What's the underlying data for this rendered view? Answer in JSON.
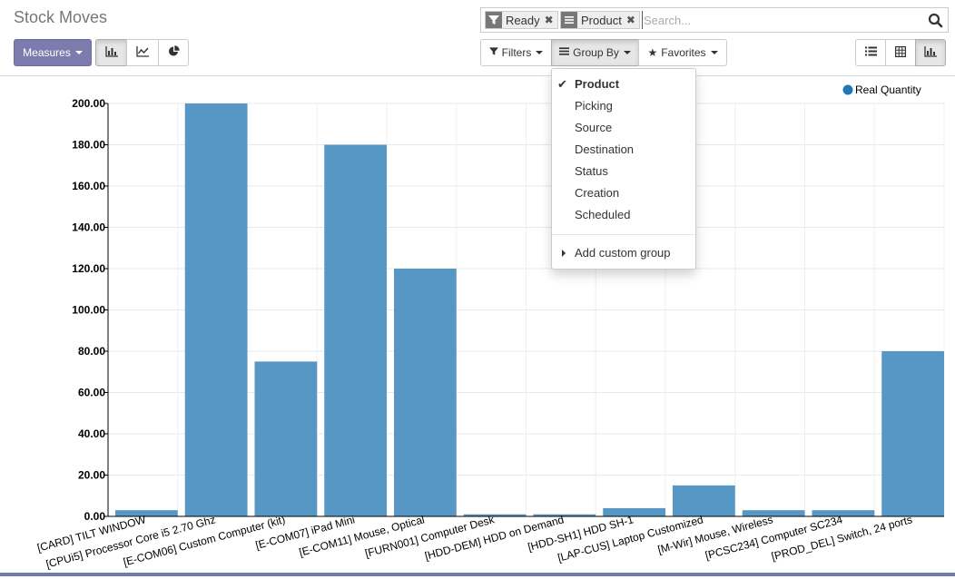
{
  "header": {
    "title": "Stock Moves"
  },
  "search": {
    "facets": [
      {
        "icon": "filter-icon",
        "label": "Ready"
      },
      {
        "icon": "bars-icon",
        "label": "Product"
      }
    ],
    "placeholder": "Search..."
  },
  "toolbar": {
    "measures_label": "Measures",
    "filters_label": "Filters",
    "groupby_label": "Group By",
    "favorites_label": "Favorites"
  },
  "groupby_menu": {
    "items": [
      {
        "label": "Product",
        "selected": true
      },
      {
        "label": "Picking",
        "selected": false
      },
      {
        "label": "Source",
        "selected": false
      },
      {
        "label": "Destination",
        "selected": false
      },
      {
        "label": "Status",
        "selected": false
      },
      {
        "label": "Creation",
        "selected": false
      },
      {
        "label": "Scheduled",
        "selected": false
      }
    ],
    "custom_label": "Add custom group"
  },
  "colors": {
    "bar": "#5697c6",
    "primary": "#7c7bad"
  },
  "chart_data": {
    "type": "bar",
    "categories": [
      "[CARD] TILT WINDOW",
      "[CPUi5] Processor Core i5 2.70 Ghz",
      "[E-COM06] Custom Computer (kit)",
      "[E-COM07] iPad Mini",
      "[E-COM11] Mouse, Optical",
      "[FURN001] Computer Desk",
      "[HDD-DEM] HDD on Demand",
      "[HDD-SH1] HDD SH-1",
      "[LAP-CUS] Laptop Customized",
      "[M-Wir] Mouse, Wireless",
      "[PCSC234] Computer SC234",
      "[PROD_DEL] Switch, 24 ports"
    ],
    "series": [
      {
        "name": "Real Quantity",
        "values": [
          3,
          200,
          75,
          180,
          120,
          1,
          1,
          4,
          15,
          3,
          3,
          80
        ]
      }
    ],
    "yticks": [
      "0.00",
      "20.00",
      "40.00",
      "60.00",
      "80.00",
      "100.00",
      "120.00",
      "140.00",
      "160.00",
      "180.00",
      "200.00"
    ],
    "ylim": [
      0,
      200
    ],
    "grid": true,
    "legend_position": "top-right"
  }
}
